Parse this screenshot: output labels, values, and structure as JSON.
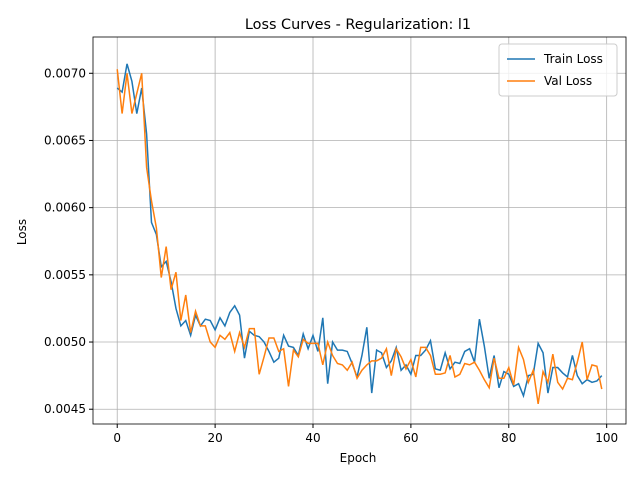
{
  "chart_data": {
    "type": "line",
    "title": "Loss Curves - Regularization: l1",
    "x_label": "Epoch",
    "y_label": "Loss",
    "x": [
      0,
      1,
      2,
      3,
      4,
      5,
      6,
      7,
      8,
      9,
      10,
      11,
      12,
      13,
      14,
      15,
      16,
      17,
      18,
      19,
      20,
      21,
      22,
      23,
      24,
      25,
      26,
      27,
      28,
      29,
      30,
      31,
      32,
      33,
      34,
      35,
      36,
      37,
      38,
      39,
      40,
      41,
      42,
      43,
      44,
      45,
      46,
      47,
      48,
      49,
      50,
      51,
      52,
      53,
      54,
      55,
      56,
      57,
      58,
      59,
      60,
      61,
      62,
      63,
      64,
      65,
      66,
      67,
      68,
      69,
      70,
      71,
      72,
      73,
      74,
      75,
      76,
      77,
      78,
      79,
      80,
      81,
      82,
      83,
      84,
      85,
      86,
      87,
      88,
      89,
      90,
      91,
      92,
      93,
      94,
      95,
      96,
      97,
      98,
      99
    ],
    "series": [
      {
        "name": "Train Loss",
        "color": "#1f77b4",
        "values": [
          0.00689,
          0.00686,
          0.00707,
          0.00694,
          0.0067,
          0.00689,
          0.00655,
          0.00589,
          0.0058,
          0.00556,
          0.0056,
          0.00545,
          0.00525,
          0.00512,
          0.00516,
          0.00505,
          0.0052,
          0.00512,
          0.00517,
          0.00516,
          0.00509,
          0.00518,
          0.00512,
          0.00522,
          0.00527,
          0.0052,
          0.00488,
          0.00508,
          0.00505,
          0.00504,
          0.005,
          0.00493,
          0.00485,
          0.00488,
          0.00505,
          0.00497,
          0.00496,
          0.0049,
          0.00506,
          0.00495,
          0.00505,
          0.00493,
          0.00518,
          0.00469,
          0.005,
          0.00494,
          0.00494,
          0.00493,
          0.00484,
          0.00474,
          0.0049,
          0.00511,
          0.00462,
          0.00494,
          0.00492,
          0.00481,
          0.00486,
          0.00496,
          0.00479,
          0.00483,
          0.00476,
          0.0049,
          0.0049,
          0.00494,
          0.00501,
          0.0048,
          0.00479,
          0.00492,
          0.0048,
          0.00485,
          0.00484,
          0.00493,
          0.00495,
          0.00485,
          0.00517,
          0.00497,
          0.00473,
          0.0049,
          0.00466,
          0.00478,
          0.00476,
          0.00467,
          0.00469,
          0.0046,
          0.00475,
          0.00476,
          0.00499,
          0.00492,
          0.00462,
          0.00481,
          0.00481,
          0.00477,
          0.00474,
          0.0049,
          0.00475,
          0.00469,
          0.00472,
          0.0047,
          0.00471,
          0.00475
        ]
      },
      {
        "name": "Val Loss",
        "color": "#ff7f0e",
        "values": [
          0.00703,
          0.0067,
          0.007,
          0.0067,
          0.00685,
          0.007,
          0.0063,
          0.00605,
          0.00585,
          0.00548,
          0.00571,
          0.00539,
          0.00552,
          0.00516,
          0.00535,
          0.00507,
          0.00523,
          0.00512,
          0.00512,
          0.005,
          0.00496,
          0.00505,
          0.00502,
          0.00507,
          0.00493,
          0.00507,
          0.00496,
          0.0051,
          0.0051,
          0.00476,
          0.00489,
          0.00503,
          0.00503,
          0.00493,
          0.00495,
          0.00467,
          0.00494,
          0.00489,
          0.00502,
          0.00499,
          0.00499,
          0.00499,
          0.00483,
          0.005,
          0.0049,
          0.00484,
          0.00483,
          0.00479,
          0.00485,
          0.00473,
          0.00479,
          0.00483,
          0.00486,
          0.00486,
          0.00488,
          0.00495,
          0.00475,
          0.00495,
          0.00489,
          0.0048,
          0.00487,
          0.00474,
          0.00496,
          0.00496,
          0.0049,
          0.00476,
          0.00476,
          0.00477,
          0.0049,
          0.00474,
          0.00476,
          0.00484,
          0.00483,
          0.00485,
          0.00479,
          0.00472,
          0.00466,
          0.00488,
          0.00473,
          0.00473,
          0.00481,
          0.00468,
          0.00496,
          0.00487,
          0.0047,
          0.00479,
          0.00454,
          0.00478,
          0.0047,
          0.00491,
          0.0047,
          0.00465,
          0.00473,
          0.00472,
          0.00485,
          0.005,
          0.00472,
          0.00483,
          0.00482,
          0.00465
        ]
      }
    ],
    "xlim": [
      -4.95,
      103.95
    ],
    "xticks": [
      0,
      20,
      40,
      60,
      80,
      100
    ],
    "ylim": [
      0.00439,
      0.00727
    ],
    "yticks": [
      {
        "value": 0.0045,
        "label": "0.0045"
      },
      {
        "value": 0.005,
        "label": "0.0050"
      },
      {
        "value": 0.0055,
        "label": "0.0055"
      },
      {
        "value": 0.006,
        "label": "0.0060"
      },
      {
        "value": 0.0065,
        "label": "0.0065"
      },
      {
        "value": 0.007,
        "label": "0.0070"
      }
    ],
    "grid": true,
    "legend": "upper right"
  }
}
